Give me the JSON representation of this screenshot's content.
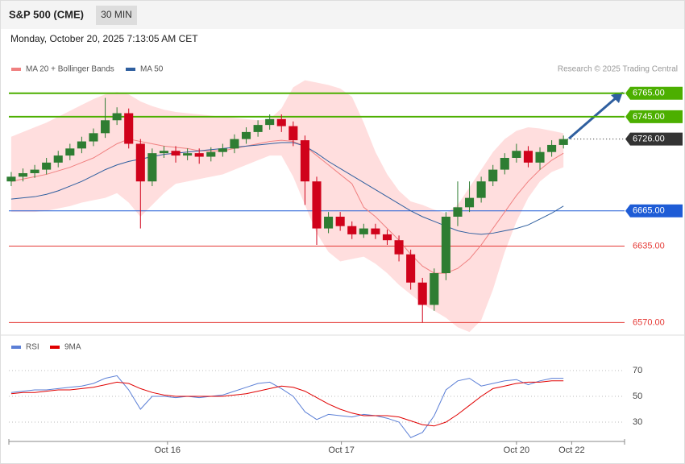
{
  "header": {
    "title": "S&P 500 (CME)",
    "timeframe": "30 MIN",
    "timestamp": "Monday, October 20, 2025 7:13:05 AM CET",
    "credit": "Research © 2025 Trading Central"
  },
  "chart_data": [
    {
      "type": "candlestick",
      "xlim": [
        -0.2,
        52.2
      ],
      "ylim": [
        6560,
        6810
      ],
      "up_color": "#2e7d32",
      "down_color": "#d0021b",
      "open": [
        6690,
        6694,
        6697,
        6700,
        6706,
        6712,
        6718,
        6724,
        6731,
        6742,
        6748,
        6722,
        6690,
        6714,
        6716,
        6712,
        6714,
        6711,
        6715,
        6718,
        6726,
        6732,
        6738,
        6743,
        6737,
        6725,
        6690,
        6650,
        6660,
        6652,
        6645,
        6650,
        6645,
        6640,
        6628,
        6604,
        6585,
        6612,
        6660,
        6668,
        6676,
        6690,
        6700,
        6710,
        6716,
        6706,
        6715,
        6721
      ],
      "high": [
        6698,
        6701,
        6704,
        6710,
        6716,
        6722,
        6728,
        6735,
        6761,
        6753,
        6752,
        6726,
        6718,
        6720,
        6720,
        6718,
        6718,
        6719,
        6722,
        6730,
        6736,
        6742,
        6747,
        6747,
        6741,
        6729,
        6694,
        6664,
        6664,
        6656,
        6654,
        6654,
        6649,
        6644,
        6632,
        6608,
        6616,
        6664,
        6690,
        6690,
        6694,
        6704,
        6714,
        6722,
        6720,
        6719,
        6725,
        6729
      ],
      "low": [
        6686,
        6690,
        6693,
        6696,
        6702,
        6708,
        6714,
        6720,
        6727,
        6738,
        6718,
        6650,
        6686,
        6710,
        6706,
        6708,
        6705,
        6707,
        6711,
        6714,
        6722,
        6728,
        6734,
        6732,
        6720,
        6670,
        6636,
        6646,
        6648,
        6641,
        6642,
        6641,
        6636,
        6622,
        6598,
        6570,
        6580,
        6606,
        6652,
        6664,
        6672,
        6686,
        6696,
        6706,
        6702,
        6700,
        6711,
        6718
      ],
      "close": [
        6694,
        6697,
        6700,
        6706,
        6712,
        6718,
        6724,
        6731,
        6742,
        6748,
        6722,
        6690,
        6714,
        6716,
        6712,
        6714,
        6711,
        6715,
        6718,
        6726,
        6732,
        6738,
        6743,
        6737,
        6725,
        6690,
        6650,
        6660,
        6652,
        6645,
        6650,
        6645,
        6640,
        6628,
        6604,
        6585,
        6612,
        6660,
        6668,
        6676,
        6690,
        6700,
        6710,
        6716,
        6706,
        6715,
        6721,
        6726
      ],
      "series": [
        {
          "name": "MA 20 + Bollinger Bands",
          "color": "#f08080",
          "band_color": "#ffd6d6",
          "values": [
            6690,
            6692,
            6694,
            6696,
            6699,
            6702,
            6706,
            6710,
            6716,
            6722,
            6726,
            6724,
            6722,
            6720,
            6719,
            6718,
            6716,
            6716,
            6716,
            6718,
            6720,
            6722,
            6724,
            6725,
            6724,
            6720,
            6712,
            6704,
            6696,
            6688,
            6668,
            6660,
            6650,
            6640,
            6628,
            6618,
            6612,
            6612,
            6616,
            6624,
            6636,
            6650,
            6664,
            6678,
            6690,
            6700,
            6708,
            6714
          ],
          "upper": [
            6728,
            6732,
            6736,
            6740,
            6745,
            6750,
            6755,
            6760,
            6764,
            6766,
            6764,
            6758,
            6754,
            6751,
            6749,
            6748,
            6747,
            6746,
            6745,
            6744,
            6743,
            6742,
            6743,
            6752,
            6770,
            6776,
            6774,
            6772,
            6769,
            6762,
            6740,
            6715,
            6696,
            6682,
            6673,
            6670,
            6666,
            6663,
            6670,
            6685,
            6700,
            6715,
            6726,
            6733,
            6736,
            6735,
            6733,
            6731
          ],
          "lower": [
            6664,
            6664,
            6664,
            6665,
            6667,
            6669,
            6672,
            6674,
            6676,
            6680,
            6672,
            6660,
            6670,
            6680,
            6688,
            6690,
            6692,
            6694,
            6696,
            6700,
            6704,
            6708,
            6712,
            6712,
            6694,
            6670,
            6646,
            6630,
            6622,
            6624,
            6626,
            6620,
            6612,
            6602,
            6594,
            6586,
            6580,
            6574,
            6566,
            6562,
            6572,
            6598,
            6630,
            6656,
            6676,
            6690,
            6698,
            6702
          ]
        },
        {
          "name": "MA 50",
          "color": "#2f5f9f",
          "values": [
            6675,
            6676,
            6677,
            6679,
            6682,
            6686,
            6690,
            6695,
            6700,
            6704,
            6707,
            6709,
            6711,
            6713,
            6714,
            6715,
            6716,
            6717,
            6718,
            6719,
            6720,
            6721,
            6722,
            6723,
            6723,
            6720,
            6714,
            6707,
            6701,
            6695,
            6689,
            6683,
            6677,
            6671,
            6665,
            6660,
            6656,
            6652,
            6648,
            6646,
            6645,
            6646,
            6648,
            6650,
            6653,
            6658,
            6663,
            6669
          ]
        }
      ],
      "levels": [
        {
          "value": 6765,
          "label": "6765.00",
          "color": "#4caf00",
          "line": "solid",
          "label_style": "box"
        },
        {
          "value": 6745,
          "label": "6745.00",
          "color": "#4caf00",
          "line": "solid",
          "label_style": "box"
        },
        {
          "value": 6726,
          "label": "6726.00",
          "color": "#333333",
          "line": "dotted",
          "label_style": "box"
        },
        {
          "value": 6665,
          "label": "6665.00",
          "color": "#1e5cd6",
          "line": "solid",
          "label_style": "box"
        },
        {
          "value": 6635,
          "label": "6635.00",
          "color": "#e53935",
          "line": "solid",
          "label_style": "text"
        },
        {
          "value": 6570,
          "label": "6570.00",
          "color": "#e53935",
          "line": "solid",
          "label_style": "text"
        }
      ]
    },
    {
      "type": "line",
      "xlim": [
        -0.2,
        52.2
      ],
      "ylim": [
        15,
        80
      ],
      "yticks": [
        30,
        50,
        70
      ],
      "grid": true,
      "xticks": [
        {
          "value": 13.3,
          "label": "Oct 16"
        },
        {
          "value": 28.1,
          "label": "Oct 17"
        },
        {
          "value": 43,
          "label": "Oct 20"
        },
        {
          "value": 47.7,
          "label": "Oct 22"
        }
      ],
      "series": [
        {
          "name": "RSI",
          "color": "#5b7fd6",
          "values": [
            53,
            54,
            55,
            55,
            56,
            57,
            58,
            60,
            64,
            66,
            55,
            40,
            50,
            50,
            49,
            50,
            49,
            50,
            51,
            54,
            57,
            60,
            61,
            56,
            50,
            38,
            32,
            36,
            35,
            34,
            36,
            35,
            33,
            30,
            18,
            22,
            35,
            55,
            62,
            64,
            58,
            60,
            62,
            63,
            59,
            62,
            64,
            64
          ]
        },
        {
          "name": "9MA",
          "color": "#e00000",
          "values": [
            52,
            53,
            53,
            54,
            55,
            55,
            56,
            57,
            59,
            61,
            60,
            56,
            53,
            51,
            50,
            50,
            50,
            50,
            50,
            51,
            52,
            54,
            56,
            58,
            57,
            54,
            49,
            44,
            40,
            37,
            35,
            35,
            35,
            34,
            31,
            28,
            27,
            30,
            36,
            43,
            50,
            56,
            58,
            60,
            61,
            61,
            62,
            62
          ]
        }
      ]
    }
  ]
}
